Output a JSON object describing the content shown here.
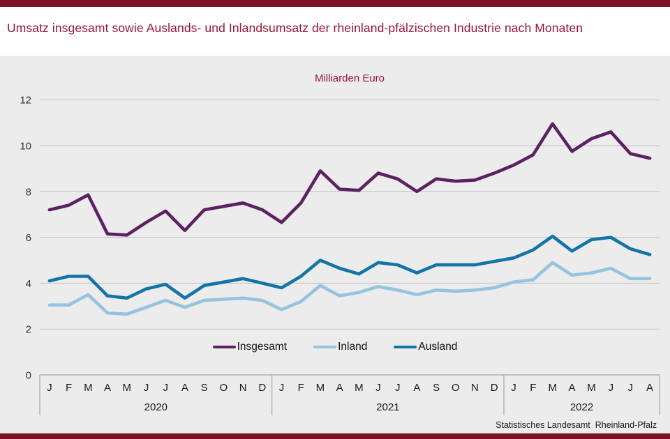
{
  "header": {
    "title": "Umsatz insgesamt sowie Auslands- und Inlandsumsatz der rheinland-pfälzischen Industrie nach Monaten"
  },
  "footer": {
    "source_org": "Statistisches Landesamt",
    "source_region": "Rheinland-Pfalz"
  },
  "colors": {
    "bar_maroon": "#7c1127",
    "title_red": "#9a1434",
    "panel_bg": "#ececec",
    "grid": "#c3c3c3",
    "axis_line": "#8f8f8f",
    "divider": "#999999",
    "axis_text": "#333333",
    "month_text": "#1a1a1a",
    "insgesamt": "#5c2160",
    "inland": "#96c3de",
    "ausland": "#1474a6"
  },
  "chart_data": {
    "type": "line",
    "title": "Umsatz insgesamt sowie Auslands- und Inlandsumsatz der rheinland-pfälzischen Industrie nach Monaten",
    "unit_label": "Milliarden Euro",
    "ylabel": "Milliarden Euro",
    "xlabel": "",
    "ylim": [
      0,
      12
    ],
    "yticks": [
      0,
      2,
      4,
      6,
      8,
      10,
      12
    ],
    "grid": true,
    "legend_position": "bottom-center",
    "groups": [
      {
        "year": "2020",
        "months": [
          "J",
          "F",
          "M",
          "A",
          "M",
          "J",
          "J",
          "A",
          "S",
          "O",
          "N",
          "D"
        ]
      },
      {
        "year": "2021",
        "months": [
          "J",
          "F",
          "M",
          "A",
          "M",
          "J",
          "J",
          "A",
          "S",
          "O",
          "N",
          "D"
        ]
      },
      {
        "year": "2022",
        "months": [
          "J",
          "F",
          "M",
          "A",
          "M",
          "J",
          "J",
          "A"
        ]
      }
    ],
    "series": [
      {
        "name": "Insgesamt",
        "color_key": "insgesamt",
        "values": [
          7.2,
          7.4,
          7.85,
          6.15,
          6.1,
          6.65,
          7.15,
          6.3,
          7.2,
          7.35,
          7.5,
          7.2,
          6.65,
          7.5,
          8.9,
          8.1,
          8.05,
          8.8,
          8.55,
          8.0,
          8.55,
          8.45,
          8.5,
          8.8,
          9.15,
          9.6,
          10.95,
          9.75,
          10.3,
          10.6,
          9.65,
          9.45
        ]
      },
      {
        "name": "Inland",
        "color_key": "inland",
        "values": [
          3.05,
          3.05,
          3.5,
          2.7,
          2.65,
          2.95,
          3.25,
          2.95,
          3.25,
          3.3,
          3.35,
          3.25,
          2.85,
          3.2,
          3.9,
          3.45,
          3.6,
          3.85,
          3.7,
          3.5,
          3.7,
          3.65,
          3.7,
          3.8,
          4.05,
          4.15,
          4.9,
          4.35,
          4.45,
          4.65,
          4.2,
          4.2
        ]
      },
      {
        "name": "Ausland",
        "color_key": "ausland",
        "values": [
          4.1,
          4.3,
          4.3,
          3.45,
          3.35,
          3.75,
          3.95,
          3.35,
          3.9,
          4.05,
          4.2,
          4.0,
          3.8,
          4.3,
          5.0,
          4.65,
          4.4,
          4.9,
          4.8,
          4.45,
          4.8,
          4.8,
          4.8,
          4.95,
          5.1,
          5.45,
          6.05,
          5.4,
          5.9,
          6.0,
          5.5,
          5.25
        ]
      }
    ]
  }
}
